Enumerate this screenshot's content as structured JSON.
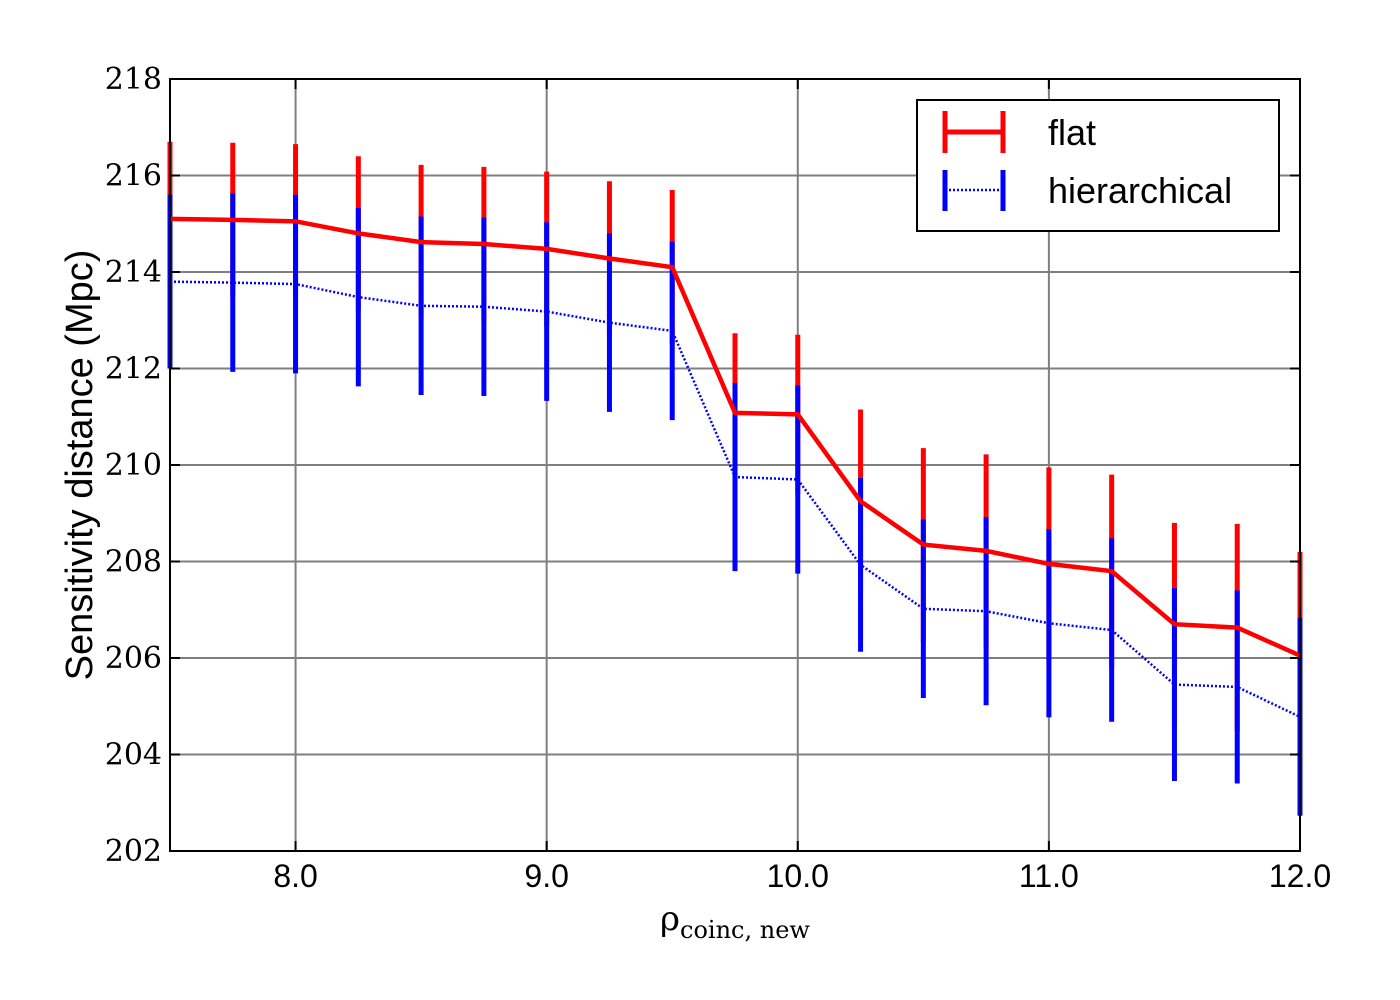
{
  "chart_data": {
    "type": "line",
    "xlabel": "ρ",
    "xlabel_subscript": "coinc, new",
    "ylabel": "Sensitivity distance (Mpc)",
    "xlim": [
      7.5,
      12.0
    ],
    "ylim": [
      202,
      218
    ],
    "xticks": [
      8.0,
      9.0,
      10.0,
      11.0,
      12.0
    ],
    "xtick_labels": [
      "8.0",
      "9.0",
      "10.0",
      "11.0",
      "12.0"
    ],
    "yticks": [
      202,
      204,
      206,
      208,
      210,
      212,
      214,
      216,
      218
    ],
    "ytick_labels": [
      "202",
      "204",
      "206",
      "208",
      "210",
      "212",
      "214",
      "216",
      "218"
    ],
    "grid": true,
    "legend_position": "top-right",
    "x": [
      7.5,
      7.75,
      8.0,
      8.25,
      8.5,
      8.75,
      9.0,
      9.25,
      9.5,
      9.75,
      10.0,
      10.25,
      10.5,
      10.75,
      11.0,
      11.25,
      11.5,
      11.75,
      12.0
    ],
    "series": [
      {
        "name": "flat",
        "color": "#ff0000",
        "style": "solid",
        "values": [
          215.1,
          215.08,
          215.05,
          214.8,
          214.62,
          214.58,
          214.48,
          214.28,
          214.1,
          211.08,
          211.05,
          209.25,
          208.35,
          208.22,
          207.95,
          207.8,
          206.7,
          206.63,
          206.05
        ],
        "errors": [
          1.6,
          1.6,
          1.6,
          1.6,
          1.6,
          1.6,
          1.6,
          1.6,
          1.6,
          1.65,
          1.65,
          1.9,
          2.0,
          2.0,
          2.0,
          2.0,
          2.1,
          2.15,
          2.15
        ]
      },
      {
        "name": "hierarchical",
        "color": "#0000ff",
        "style": "dotted",
        "values": [
          213.8,
          213.78,
          213.75,
          213.48,
          213.3,
          213.28,
          213.18,
          212.95,
          212.78,
          209.75,
          209.7,
          207.93,
          207.02,
          206.97,
          206.72,
          206.58,
          205.45,
          205.4,
          204.78
        ],
        "errors": [
          1.8,
          1.85,
          1.85,
          1.85,
          1.85,
          1.85,
          1.85,
          1.85,
          1.85,
          1.95,
          1.95,
          1.8,
          1.85,
          1.95,
          1.95,
          1.9,
          2.0,
          2.0,
          2.05
        ]
      }
    ]
  }
}
